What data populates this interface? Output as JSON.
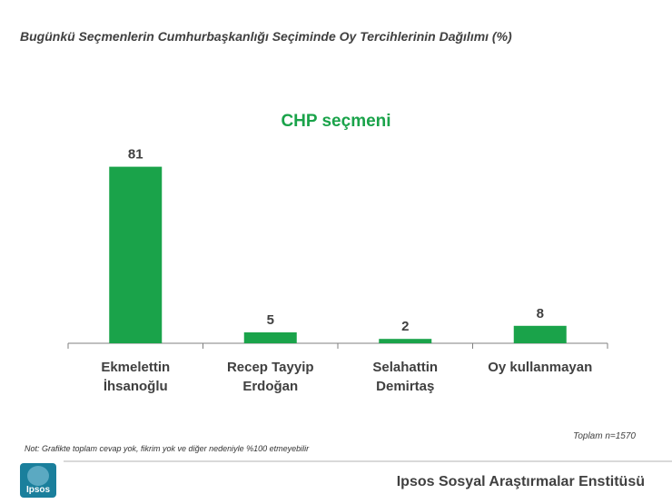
{
  "slide": {
    "title": "Bugünkü Seçmenlerin Cumhurbaşkanlığı Seçiminde Oy Tercihlerinin Dağılımı (%)",
    "note": "Not: Grafikte toplam cevap yok, fikrim yok ve diğer nedeniyle %100 etmeyebilir",
    "sample_size": "Toplam n=1570",
    "institute": "Ipsos Sosyal Araştırmalar Enstitüsü",
    "logo_text": "Ipsos"
  },
  "colors": {
    "bar": "#1aa34a",
    "title_green": "#1aa34a",
    "axis": "#808080",
    "text": "#404040"
  },
  "chart_data": {
    "type": "bar",
    "title": "CHP seçmeni",
    "categories": [
      [
        "Ekmelettin",
        "İhsanoğlu"
      ],
      [
        "Recep Tayyip",
        "Erdoğan"
      ],
      [
        "Selahattin",
        "Demirtaş"
      ],
      [
        "Oy kullanmayan"
      ]
    ],
    "values": [
      81,
      5,
      2,
      8
    ],
    "ylim": [
      0,
      90
    ],
    "grid": false,
    "legend": false
  }
}
